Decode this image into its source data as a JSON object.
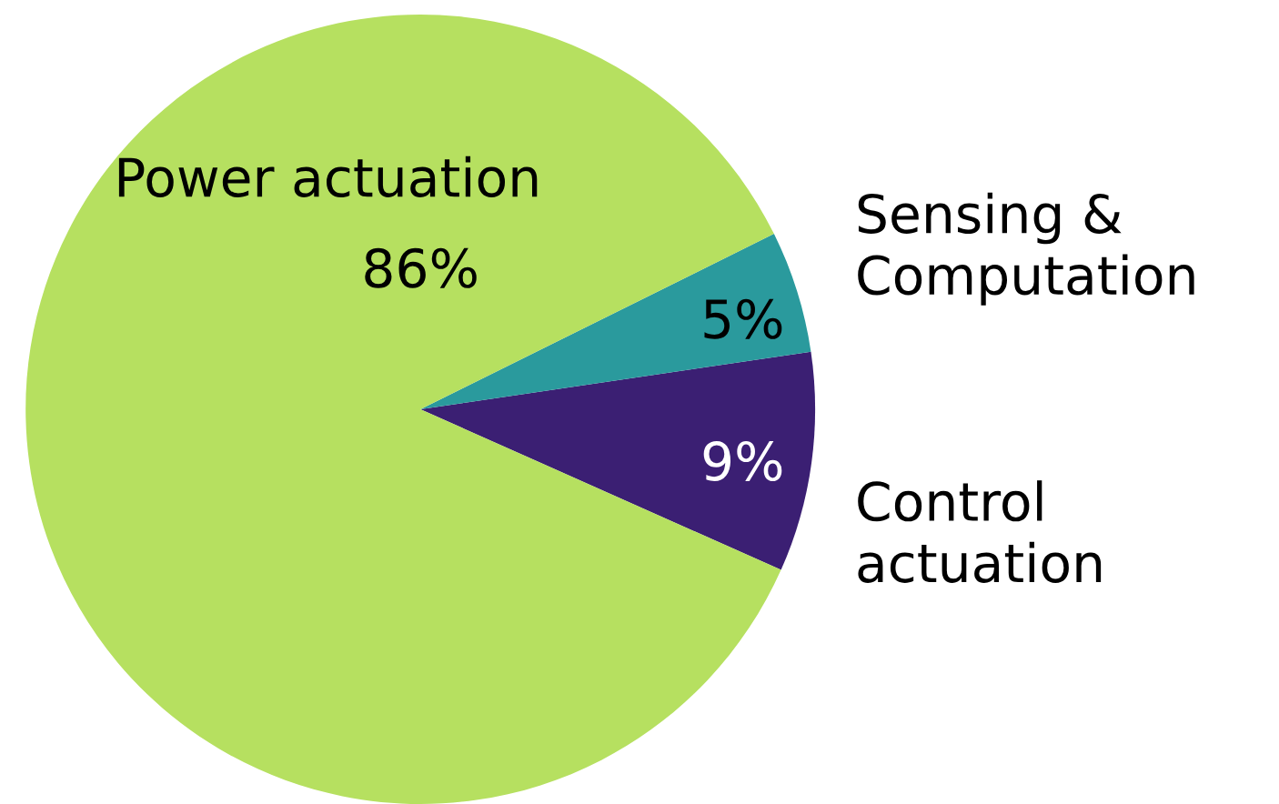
{
  "chart_data": {
    "type": "pie",
    "categories": [
      "Control\nactuation",
      "Sensing &\nComputation",
      "Power actuation"
    ],
    "values": [
      9,
      5,
      86
    ],
    "value_labels": [
      "9%",
      "5%",
      "86%"
    ],
    "colors": [
      "#3b1f73",
      "#2a9a9d",
      "#b6e060"
    ],
    "legend": false
  }
}
